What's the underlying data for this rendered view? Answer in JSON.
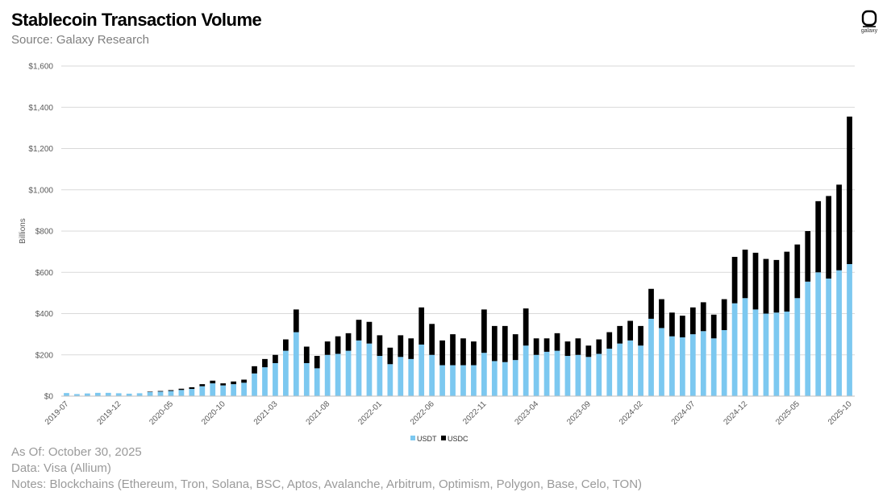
{
  "header": {
    "title": "Stablecoin Transaction Volume",
    "subtitle": "Source: Galaxy Research",
    "logo_text": "galaxy"
  },
  "footer": {
    "as_of": "As Of: October 30, 2025",
    "data_source": "Data: Visa (Allium)",
    "notes": "Notes: Blockchains (Ethereum, Tron, Solana, BSC, Aptos, Avalanche, Arbitrum, Optimism, Polygon, Base, Celo, TON)"
  },
  "colors": {
    "usdt": "#7cc8f0",
    "usdc": "#000000",
    "grid": "#d9d9d9",
    "axis_text": "#595959"
  },
  "chart_data": {
    "type": "bar",
    "stacked": true,
    "title": "Stablecoin Transaction Volume",
    "xlabel": "",
    "ylabel": "Billions",
    "ylim": [
      0,
      1600
    ],
    "yticks": [
      0,
      200,
      400,
      600,
      800,
      1000,
      1200,
      1400,
      1600
    ],
    "ytick_labels": [
      "$0",
      "$200",
      "$400",
      "$600",
      "$800",
      "$1,000",
      "$1,200",
      "$1,400",
      "$1,600"
    ],
    "xtick_labels": [
      "2019-07",
      "2019-12",
      "2020-05",
      "2020-10",
      "2021-03",
      "2021-08",
      "2022-01",
      "2022-06",
      "2022-11",
      "2023-04",
      "2023-09",
      "2024-02",
      "2024-07",
      "2024-12",
      "2025-05",
      "2025-10"
    ],
    "xtick_every": 5,
    "legend": "bottom-center",
    "grid": true,
    "categories": [
      "2019-07",
      "2019-08",
      "2019-09",
      "2019-10",
      "2019-11",
      "2019-12",
      "2020-01",
      "2020-02",
      "2020-03",
      "2020-04",
      "2020-05",
      "2020-06",
      "2020-07",
      "2020-08",
      "2020-09",
      "2020-10",
      "2020-11",
      "2020-12",
      "2021-01",
      "2021-02",
      "2021-03",
      "2021-04",
      "2021-05",
      "2021-06",
      "2021-07",
      "2021-08",
      "2021-09",
      "2021-10",
      "2021-11",
      "2021-12",
      "2022-01",
      "2022-02",
      "2022-03",
      "2022-04",
      "2022-05",
      "2022-06",
      "2022-07",
      "2022-08",
      "2022-09",
      "2022-10",
      "2022-11",
      "2022-12",
      "2023-01",
      "2023-02",
      "2023-03",
      "2023-04",
      "2023-05",
      "2023-06",
      "2023-07",
      "2023-08",
      "2023-09",
      "2023-10",
      "2023-11",
      "2023-12",
      "2024-01",
      "2024-02",
      "2024-03",
      "2024-04",
      "2024-05",
      "2024-06",
      "2024-07",
      "2024-08",
      "2024-09",
      "2024-10",
      "2024-11",
      "2024-12",
      "2025-01",
      "2025-02",
      "2025-03",
      "2025-04",
      "2025-05",
      "2025-06",
      "2025-07",
      "2025-08",
      "2025-09",
      "2025-10"
    ],
    "series": [
      {
        "name": "USDT",
        "values": [
          15,
          10,
          13,
          16,
          16,
          14,
          12,
          14,
          20,
          22,
          25,
          30,
          35,
          48,
          62,
          52,
          58,
          65,
          110,
          140,
          160,
          220,
          310,
          160,
          135,
          200,
          205,
          220,
          270,
          255,
          195,
          155,
          190,
          180,
          250,
          200,
          150,
          150,
          150,
          150,
          210,
          170,
          165,
          175,
          245,
          200,
          215,
          220,
          195,
          200,
          190,
          205,
          230,
          255,
          270,
          245,
          375,
          330,
          290,
          285,
          300,
          315,
          280,
          320,
          450,
          475,
          420,
          400,
          405,
          410,
          475,
          555,
          600,
          570,
          610,
          640
        ]
      },
      {
        "name": "USDC",
        "values": [
          0,
          0,
          0,
          0,
          0,
          0,
          0,
          0,
          2,
          3,
          4,
          6,
          8,
          10,
          13,
          10,
          13,
          15,
          35,
          40,
          40,
          55,
          110,
          80,
          60,
          65,
          85,
          85,
          100,
          105,
          100,
          80,
          105,
          100,
          180,
          150,
          120,
          150,
          130,
          115,
          210,
          170,
          175,
          125,
          180,
          80,
          65,
          85,
          70,
          80,
          55,
          70,
          80,
          85,
          95,
          95,
          145,
          140,
          115,
          105,
          130,
          140,
          115,
          150,
          225,
          235,
          275,
          265,
          255,
          290,
          260,
          245,
          345,
          400,
          415,
          715
        ]
      }
    ]
  }
}
